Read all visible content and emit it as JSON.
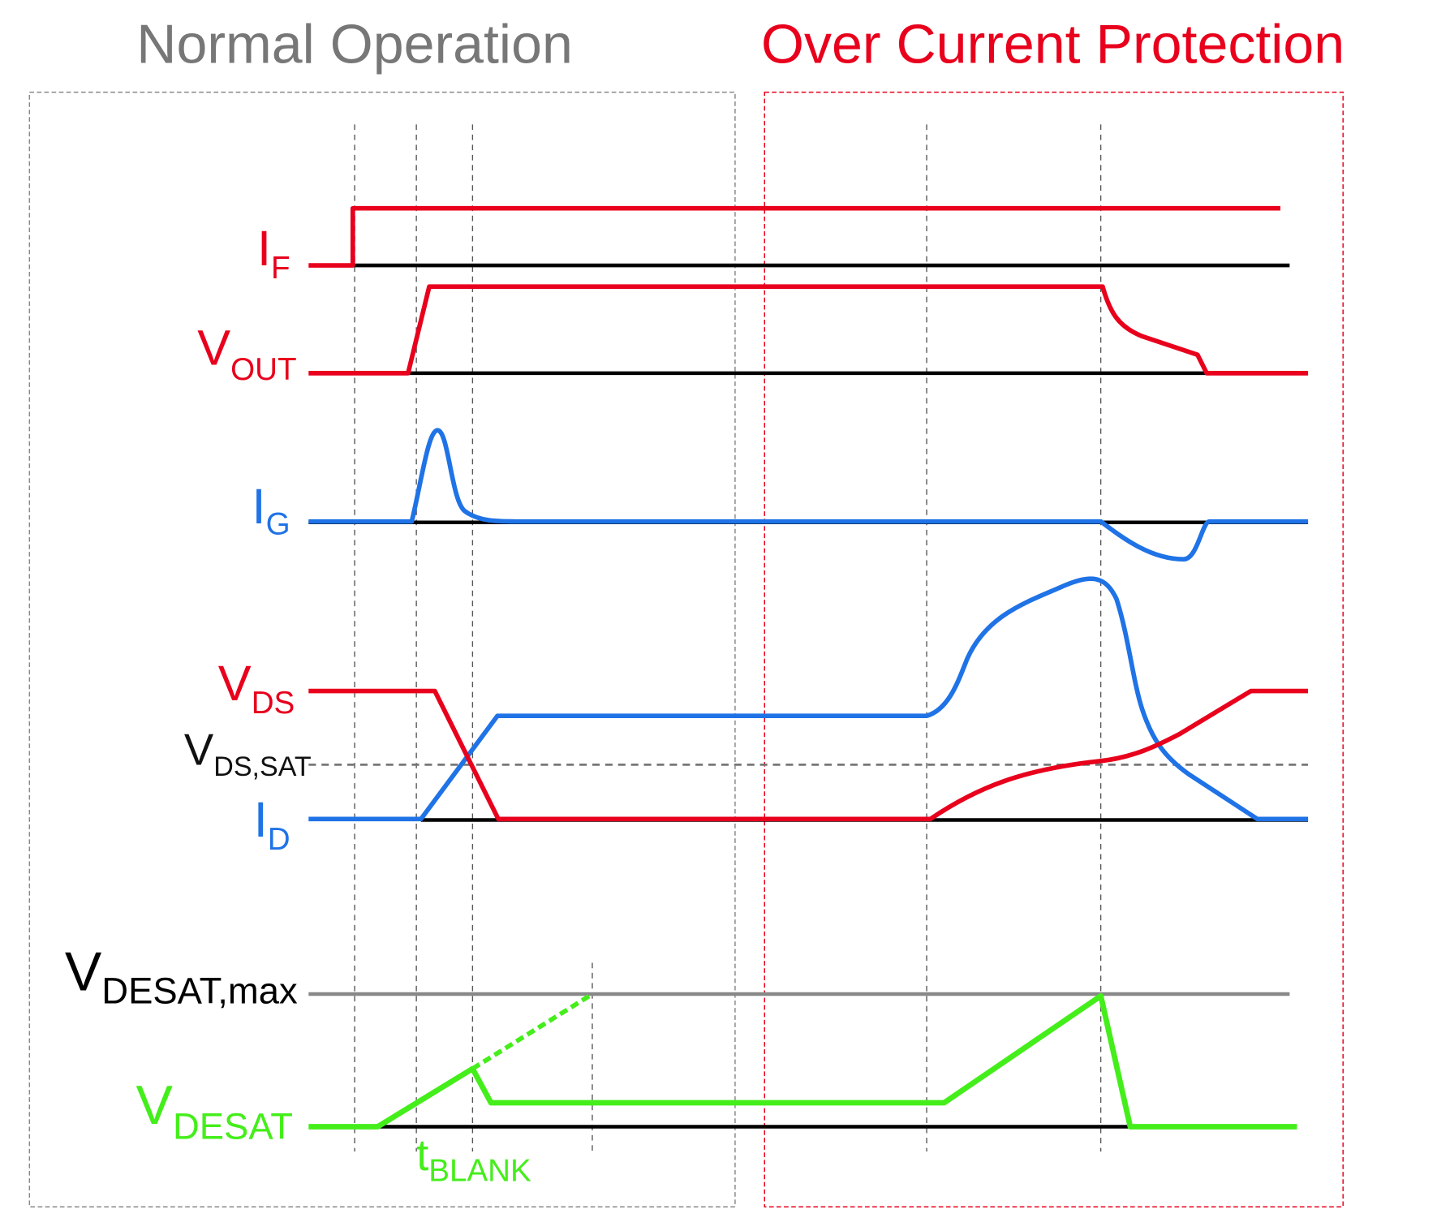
{
  "titles": {
    "normal": "Normal Operation",
    "ocp": "Over Current Protection"
  },
  "colors": {
    "red": "#e8001c",
    "blue": "#1f73e6",
    "green": "#44ee1a",
    "gray": "#777777",
    "black": "#000000"
  },
  "signals": {
    "if": {
      "main": "I",
      "sub": "F"
    },
    "vout": {
      "main": "V",
      "sub": "OUT"
    },
    "ig": {
      "main": "I",
      "sub": "G"
    },
    "vds": {
      "main": "V",
      "sub": "DS"
    },
    "vdssat": {
      "main": "V",
      "sub": "DS,SAT"
    },
    "id": {
      "main": "I",
      "sub": "D"
    },
    "vdesatmax": {
      "main": "V",
      "sub": "DESAT,max"
    },
    "vdesat": {
      "main": "V",
      "sub": "DESAT"
    },
    "tblank": {
      "main": "t",
      "sub": "BLANK"
    }
  }
}
